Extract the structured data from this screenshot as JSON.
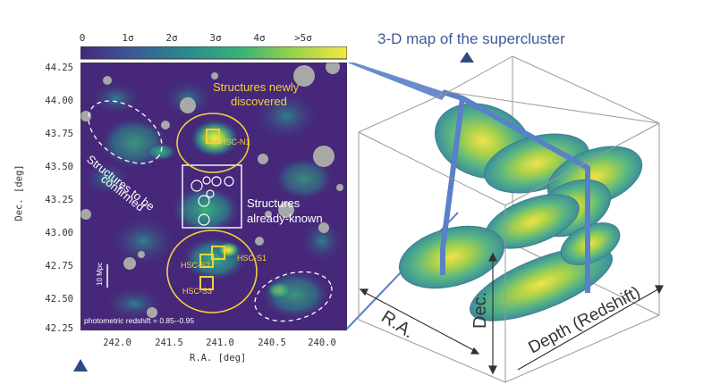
{
  "map_title": "3-D map of the supercluster",
  "colorbar": {
    "labels": [
      "0",
      "1σ",
      "2σ",
      "3σ",
      "4σ",
      ">5σ"
    ],
    "colors": [
      "#46277a",
      "#3a5c96",
      "#2a8a8c",
      "#38b27a",
      "#9ad24a",
      "#f4e842"
    ]
  },
  "sky_map": {
    "yaxis_label": "Dec. [deg]",
    "xaxis_label": "R.A. [deg]",
    "yticks": [
      "44.25",
      "44.00",
      "43.75",
      "43.50",
      "43.25",
      "43.00",
      "42.75",
      "42.50",
      "42.25"
    ],
    "xticks": [
      "242.0",
      "241.5",
      "241.0",
      "240.5",
      "240.0"
    ],
    "annotations": {
      "new_structures": "Structures newly discovered",
      "new_structures_line1": "Structures newly",
      "new_structures_line2": "discovered",
      "to_confirm_line1": "Structures to be",
      "to_confirm_line2": "confirmed",
      "known_line1": "Structures",
      "known_line2": "already-known",
      "hsc_n1": "HSC-N1",
      "hsc_s1": "HSC-S1",
      "hsc_s2": "HSC-S2",
      "hsc_s3": "HSC-S3",
      "scale_bar": "10 Mpc",
      "redshift_note": "photometric redshift = 0.85--0.95"
    },
    "colors": {
      "highlight": "#f2d23a",
      "background": "#46277a"
    }
  },
  "cube": {
    "axis_ra": "R.A.",
    "axis_dec": "Dec.",
    "axis_depth": "Depth (Redshift)",
    "colors": {
      "frame": "#5a80c8",
      "blob_outer": "#4a9fa8",
      "blob_inner": "#f2e24a"
    }
  }
}
